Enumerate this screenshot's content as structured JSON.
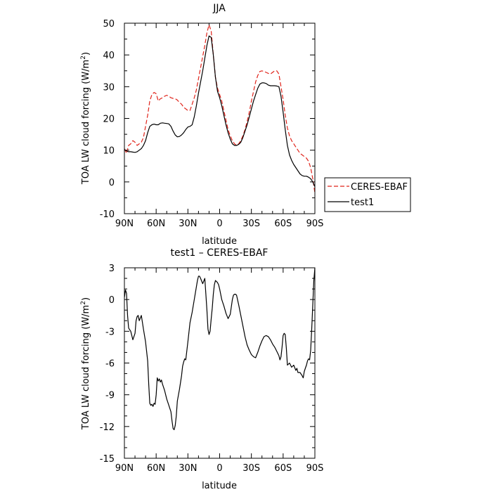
{
  "chart_data": [
    {
      "type": "line",
      "title": "JJA",
      "xlabel": "latitude",
      "ylabel_parts": [
        "TOA LW cloud forcing (W/m",
        "2",
        ")"
      ],
      "xlim": [
        90,
        -90
      ],
      "ylim": [
        -10,
        50
      ],
      "x_ticks": [
        90,
        60,
        30,
        0,
        -30,
        -60,
        -90
      ],
      "x_tick_labels": [
        "90N",
        "60N",
        "30N",
        "0",
        "30S",
        "60S",
        "90S"
      ],
      "y_ticks": [
        -10,
        0,
        10,
        20,
        30,
        40,
        50
      ],
      "y_tick_labels": [
        "-10",
        "0",
        "10",
        "20",
        "30",
        "40",
        "50"
      ],
      "legend_position": "right-bottom",
      "series": [
        {
          "name": "CERES-EBAF",
          "color": "#e0241b",
          "dash": "dashed",
          "x": [
            90,
            88,
            86,
            84,
            82,
            80,
            78,
            76,
            74,
            72,
            70,
            68,
            66,
            64,
            62,
            60,
            58,
            56,
            54,
            52,
            50,
            48,
            46,
            44,
            42,
            40,
            38,
            36,
            34,
            32,
            30,
            28,
            26,
            24,
            22,
            20,
            18,
            16,
            14,
            12,
            10,
            8,
            6,
            4,
            2,
            0,
            -2,
            -4,
            -6,
            -8,
            -10,
            -12,
            -14,
            -16,
            -18,
            -20,
            -22,
            -24,
            -26,
            -28,
            -30,
            -32,
            -34,
            -36,
            -38,
            -40,
            -42,
            -44,
            -46,
            -48,
            -50,
            -52,
            -54,
            -56,
            -58,
            -60,
            -62,
            -64,
            -66,
            -68,
            -70,
            -72,
            -74,
            -76,
            -78,
            -80,
            -82,
            -84,
            -86,
            -88,
            -90
          ],
          "y": [
            10.5,
            9.0,
            11.5,
            12.0,
            13.0,
            12.5,
            11.5,
            12.0,
            12.5,
            14.0,
            17.5,
            21.0,
            25.5,
            27.5,
            28.2,
            27.8,
            25.5,
            26.2,
            26.5,
            27.0,
            27.3,
            27.0,
            26.5,
            26.3,
            26.2,
            25.8,
            25.0,
            24.5,
            23.5,
            23.0,
            22.5,
            22.5,
            24.5,
            26.5,
            29.0,
            32.5,
            36.0,
            39.5,
            43.0,
            47.0,
            49.5,
            47.5,
            40.0,
            33.0,
            29.5,
            27.5,
            25.5,
            22.5,
            19.5,
            16.5,
            14.5,
            13.0,
            12.0,
            11.5,
            12.0,
            13.0,
            14.5,
            16.5,
            19.0,
            22.0,
            25.5,
            28.5,
            31.5,
            33.5,
            34.8,
            35.0,
            34.8,
            34.5,
            34.2,
            34.0,
            34.5,
            35.0,
            35.0,
            34.0,
            30.0,
            26.0,
            21.0,
            17.0,
            14.5,
            13.0,
            12.0,
            11.0,
            10.0,
            9.0,
            8.5,
            8.0,
            7.5,
            6.5,
            4.5,
            1.0,
            -3.5
          ]
        },
        {
          "name": "test1",
          "color": "#000000",
          "dash": "solid",
          "x": [
            90,
            88,
            86,
            84,
            82,
            80,
            78,
            76,
            74,
            72,
            70,
            68,
            66,
            64,
            62,
            60,
            58,
            56,
            54,
            52,
            50,
            48,
            46,
            44,
            42,
            40,
            38,
            36,
            34,
            32,
            30,
            28,
            26,
            24,
            22,
            20,
            18,
            16,
            14,
            12,
            10,
            8,
            6,
            4,
            2,
            0,
            -2,
            -4,
            -6,
            -8,
            -10,
            -12,
            -14,
            -16,
            -18,
            -20,
            -22,
            -24,
            -26,
            -28,
            -30,
            -32,
            -34,
            -36,
            -38,
            -40,
            -42,
            -44,
            -46,
            -48,
            -50,
            -52,
            -54,
            -56,
            -58,
            -60,
            -62,
            -64,
            -66,
            -68,
            -70,
            -72,
            -74,
            -76,
            -78,
            -80,
            -82,
            -84,
            -86,
            -88,
            -90
          ],
          "y": [
            10.2,
            9.8,
            9.5,
            9.5,
            9.4,
            9.3,
            9.5,
            10.0,
            10.5,
            11.5,
            13.0,
            15.5,
            17.5,
            18.0,
            18.2,
            18.0,
            18.0,
            18.5,
            18.6,
            18.5,
            18.4,
            18.3,
            17.5,
            16.0,
            14.8,
            14.2,
            14.3,
            14.8,
            15.5,
            16.5,
            17.3,
            17.5,
            18.0,
            20.5,
            24.0,
            28.0,
            31.5,
            35.0,
            39.0,
            43.0,
            46.0,
            45.5,
            40.0,
            33.0,
            28.5,
            26.5,
            24.0,
            21.0,
            18.0,
            15.5,
            13.5,
            12.0,
            11.5,
            11.5,
            11.8,
            12.5,
            14.0,
            16.0,
            18.0,
            20.5,
            23.0,
            25.5,
            27.5,
            29.5,
            30.8,
            31.2,
            31.2,
            31.0,
            30.5,
            30.3,
            30.3,
            30.3,
            30.2,
            30.0,
            27.0,
            22.0,
            16.5,
            11.5,
            8.5,
            6.8,
            5.5,
            4.5,
            3.5,
            2.5,
            2.0,
            1.8,
            1.8,
            1.5,
            1.0,
            0.0,
            -1.5
          ]
        }
      ]
    },
    {
      "type": "line",
      "title": "test1 – CERES-EBAF",
      "xlabel": "latitude",
      "ylabel_parts": [
        "TOA LW cloud forcing (W/m",
        "2",
        ")"
      ],
      "xlim": [
        90,
        -90
      ],
      "ylim": [
        -15,
        3
      ],
      "x_ticks": [
        90,
        60,
        30,
        0,
        -30,
        -60,
        -90
      ],
      "x_tick_labels": [
        "90N",
        "60N",
        "30N",
        "0",
        "30S",
        "60S",
        "90S"
      ],
      "y_ticks": [
        -15,
        -12,
        -9,
        -6,
        -3,
        0,
        3
      ],
      "y_tick_labels": [
        "-15",
        "-12",
        "-9",
        "-6",
        "-3",
        "0",
        "3"
      ],
      "series": [
        {
          "color": "#000000",
          "dash": "solid",
          "x": [
            90,
            89,
            88,
            87,
            86,
            84,
            82,
            80,
            79,
            78,
            77,
            76,
            74,
            72,
            70,
            68,
            67,
            66,
            65,
            64,
            63,
            62,
            61,
            60,
            59,
            58,
            57,
            56,
            55,
            54,
            52,
            50,
            48,
            46,
            45,
            44,
            43,
            42,
            41,
            40,
            38,
            36,
            35,
            34,
            33,
            32,
            30,
            28,
            26,
            24,
            22,
            21,
            20,
            19,
            18,
            16,
            14,
            12,
            11,
            10,
            9,
            8,
            7,
            6,
            5,
            4,
            3,
            2,
            1,
            0,
            -2,
            -4,
            -6,
            -8,
            -10,
            -12,
            -13,
            -14,
            -15,
            -16,
            -18,
            -20,
            -22,
            -24,
            -26,
            -28,
            -30,
            -32,
            -34,
            -36,
            -38,
            -40,
            -42,
            -44,
            -46,
            -48,
            -50,
            -52,
            -54,
            -56,
            -57,
            -58,
            -59,
            -60,
            -61,
            -62,
            -63,
            -64,
            -66,
            -68,
            -70,
            -72,
            -73,
            -74,
            -76,
            -78,
            -79,
            -80,
            -81,
            -82,
            -83,
            -84,
            -85,
            -86,
            -87,
            -88,
            -89,
            -90
          ],
          "y": [
            0.2,
            0.9,
            0.6,
            -1.5,
            -2.7,
            -3.0,
            -3.8,
            -3.2,
            -2.0,
            -1.6,
            -1.5,
            -2.0,
            -1.5,
            -2.8,
            -4.0,
            -5.8,
            -8.0,
            -9.8,
            -10.0,
            -9.9,
            -10.1,
            -9.8,
            -9.9,
            -9.0,
            -7.4,
            -7.7,
            -7.5,
            -7.8,
            -7.6,
            -8.0,
            -8.6,
            -9.4,
            -10.0,
            -10.6,
            -11.5,
            -12.2,
            -12.3,
            -11.9,
            -11.0,
            -9.6,
            -8.5,
            -7.2,
            -6.3,
            -5.9,
            -5.6,
            -5.7,
            -4.0,
            -2.2,
            -1.2,
            0.0,
            1.2,
            1.8,
            2.2,
            2.2,
            2.0,
            1.5,
            2.0,
            -1.0,
            -2.8,
            -3.3,
            -3.0,
            -1.8,
            -0.8,
            0.5,
            1.4,
            1.8,
            1.7,
            1.6,
            1.4,
            1.0,
            0.0,
            -0.6,
            -1.3,
            -1.8,
            -1.4,
            0.0,
            0.4,
            0.5,
            0.5,
            0.4,
            -0.5,
            -1.5,
            -2.5,
            -3.5,
            -4.3,
            -4.8,
            -5.2,
            -5.4,
            -5.5,
            -5.0,
            -4.4,
            -3.9,
            -3.5,
            -3.4,
            -3.5,
            -3.8,
            -4.2,
            -4.5,
            -4.9,
            -5.3,
            -5.7,
            -5.4,
            -4.5,
            -3.4,
            -3.2,
            -3.3,
            -4.6,
            -6.2,
            -6.0,
            -6.4,
            -6.2,
            -6.7,
            -6.5,
            -6.9,
            -6.9,
            -7.2,
            -7.4,
            -6.8,
            -6.5,
            -6.2,
            -5.8,
            -5.6,
            -5.7,
            -4.8,
            -2.8,
            -0.5,
            1.8,
            3.0
          ]
        }
      ]
    }
  ]
}
